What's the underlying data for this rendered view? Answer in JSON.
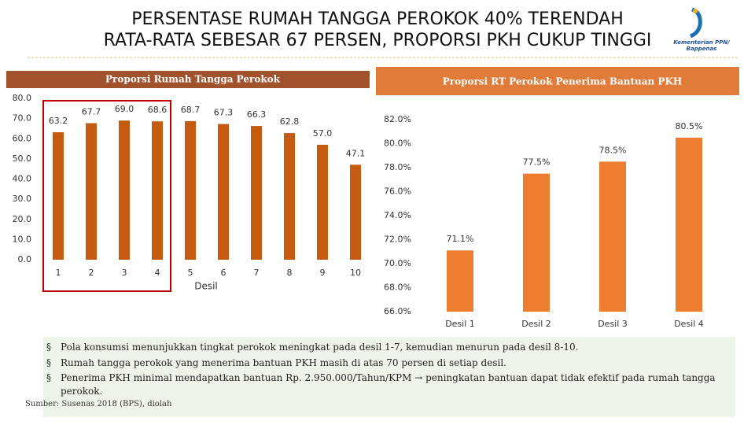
{
  "header": {
    "title": [
      "PERSENTASE RUMAH TANGGA PEROKOK 40% TERENDAH",
      "RATA-RATA SEBESAR 67 PERSEN, PROPORSI PKH CUKUP TINGGI"
    ],
    "logo": [
      "Kementerian PPN/",
      "Bappenas"
    ]
  },
  "chart_data": [
    {
      "type": "bar",
      "title": "Proporsi Rumah Tangga Perokok",
      "x_label": "Desil",
      "categories": [
        "1",
        "2",
        "3",
        "4",
        "5",
        "6",
        "7",
        "8",
        "9",
        "10"
      ],
      "values": [
        63.2,
        67.7,
        69.0,
        68.6,
        68.7,
        67.3,
        66.3,
        62.8,
        57.0,
        47.1
      ],
      "value_labels": [
        "63.2",
        "67.7",
        "69.0",
        "68.6",
        "68.7",
        "67.3",
        "66.3",
        "62.8",
        "57.0",
        "47.1"
      ],
      "color": "#c55a11",
      "ylim": [
        0,
        80
      ],
      "yticks": [
        {
          "value": 0,
          "label": "0.0"
        },
        {
          "value": 10,
          "label": "10.0"
        },
        {
          "value": 20,
          "label": "20.0"
        },
        {
          "value": 30,
          "label": "30.0"
        },
        {
          "value": 40,
          "label": "40.0"
        },
        {
          "value": 50,
          "label": "50.0"
        },
        {
          "value": 60,
          "label": "60.0"
        },
        {
          "value": 70,
          "label": "70.0"
        },
        {
          "value": 80,
          "label": "80.0"
        }
      ]
    },
    {
      "type": "bar",
      "title": "Proporsi RT Perokok Penerima Bantuan PKH",
      "categories": [
        "Desil 1",
        "Desil 2",
        "Desil 3",
        "Desil 4"
      ],
      "values": [
        71.1,
        77.5,
        78.5,
        80.5
      ],
      "value_labels": [
        "71.1%",
        "77.5%",
        "78.5%",
        "80.5%"
      ],
      "color": "#ed7d31",
      "ylim": [
        66,
        82
      ],
      "yticks": [
        {
          "value": 66,
          "label": "66.0%"
        },
        {
          "value": 68,
          "label": "68.0%"
        },
        {
          "value": 70,
          "label": "70.0%"
        },
        {
          "value": 72,
          "label": "72.0%"
        },
        {
          "value": 74,
          "label": "74.0%"
        },
        {
          "value": 76,
          "label": "76.0%"
        },
        {
          "value": 78,
          "label": "78.0%"
        },
        {
          "value": 80,
          "label": "80.0%"
        },
        {
          "value": 82,
          "label": "82.0%"
        }
      ]
    }
  ],
  "notes": [
    "Pola konsumsi menunjukkan tingkat perokok meningkat pada desil 1-7, kemudian menurun pada desil 8-10.",
    "Rumah tangga perokok yang menerima bantuan PKH masih di atas 70 persen di setiap desil.",
    "Penerima PKH minimal mendapatkan bantuan Rp. 2.950.000/Tahun/KPM → peningkatan bantuan dapat tidak efektif pada rumah tangga perokok."
  ],
  "source": "Sumber: Susenas 2018 (BPS), diolah"
}
